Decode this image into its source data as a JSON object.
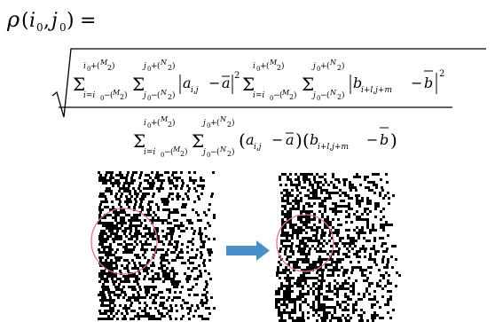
{
  "formula": {
    "lhs_symbol": "ρ",
    "lhs_i0": "i",
    "lhs_j0": "j",
    "sub_zero": "0",
    "lhs_comma": ",",
    "lhs_open": "(",
    "lhs_close": ")",
    "equals": "=",
    "sum": "Σ",
    "i_lower": "i=i",
    "i_upper_left": "i",
    "j_lower": "j",
    "j_upper_left": "j",
    "M": "M",
    "N": "N",
    "two": "2",
    "a_term": "a",
    "a_sub": "i,j",
    "a_bar": "a",
    "b_term": "b",
    "b_sub": "i+l,j+m",
    "b_bar": "b",
    "minus": "−",
    "plus": "+",
    "sq": "2"
  },
  "figure": {
    "arrow_color": "#4a90c8",
    "circle_color": "#e0768a",
    "noise_color": "#000000"
  }
}
